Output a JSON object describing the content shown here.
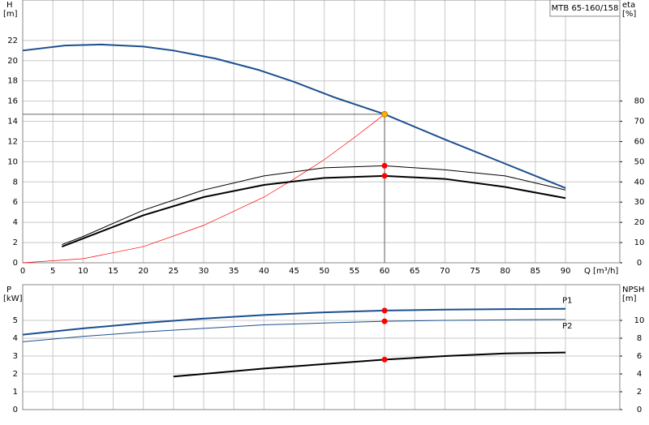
{
  "chart_data": [
    {
      "type": "line",
      "title": "MTB 65-160/158",
      "y_label": "H",
      "y_unit": "[m]",
      "y2_label": "eta",
      "y2_unit": "[%]",
      "x_label": "Q [m³/h]",
      "xlim": [
        0,
        99
      ],
      "xticks": [
        0,
        5,
        10,
        15,
        20,
        25,
        30,
        35,
        40,
        45,
        50,
        55,
        60,
        65,
        70,
        75,
        80,
        85,
        90
      ],
      "ylim": [
        0,
        26
      ],
      "yticks": [
        0,
        2,
        4,
        6,
        8,
        10,
        12,
        14,
        16,
        18,
        20,
        22
      ],
      "y2lim": [
        0,
        130
      ],
      "y2ticks": [
        0,
        10,
        20,
        30,
        40,
        50,
        60,
        70,
        80
      ],
      "grid": true,
      "series": [
        {
          "color": "#1c4f8f",
          "width": 2,
          "x": [
            0,
            7,
            13,
            20,
            25,
            32,
            39,
            45,
            52,
            60,
            70,
            80,
            90
          ],
          "values": [
            21.0,
            21.5,
            21.6,
            21.4,
            21.0,
            20.2,
            19.1,
            17.9,
            16.3,
            14.7,
            12.2,
            9.8,
            7.4
          ]
        },
        {
          "color": "#ff0000",
          "width": 0.7,
          "x": [
            0,
            10,
            20,
            30,
            40,
            45,
            50,
            55,
            60
          ],
          "values": [
            0,
            0.4,
            1.6,
            3.7,
            6.5,
            8.3,
            10.2,
            12.4,
            14.7
          ]
        },
        {
          "color": "#000000",
          "width": 1,
          "axis": "y2",
          "x": [
            6.5,
            10,
            20,
            30,
            40,
            50,
            60,
            70,
            80,
            90
          ],
          "values": [
            9,
            13,
            26,
            36,
            43,
            47,
            48,
            46,
            43,
            36
          ]
        },
        {
          "color": "#000000",
          "width": 2,
          "axis": "y2",
          "x": [
            6.5,
            10,
            20,
            30,
            40,
            50,
            60,
            70,
            80,
            90
          ],
          "values": [
            8,
            12,
            23.5,
            32.5,
            38.5,
            42,
            43,
            41.5,
            37.5,
            32
          ]
        }
      ],
      "points": [
        {
          "x": 60,
          "y": 14.7,
          "color": "#ffb000",
          "crosshair": true
        },
        {
          "x": 60,
          "y": 48,
          "axis": "y2",
          "color": "#ff0000"
        },
        {
          "x": 60,
          "y": 43,
          "axis": "y2",
          "color": "#ff0000"
        }
      ]
    },
    {
      "type": "line",
      "y_label": "P",
      "y_unit": "[kW]",
      "y2_label": "NPSH",
      "y2_unit": "[m]",
      "xlim": [
        0,
        99
      ],
      "xticks": [
        0,
        5,
        10,
        15,
        20,
        25,
        30,
        35,
        40,
        45,
        50,
        55,
        60,
        65,
        70,
        75,
        80,
        85,
        90
      ],
      "ylim": [
        0,
        7
      ],
      "yticks": [
        0,
        1,
        2,
        3,
        4,
        5
      ],
      "y2lim": [
        0,
        14
      ],
      "y2ticks": [
        0,
        2,
        4,
        6,
        8,
        10
      ],
      "grid": true,
      "series": [
        {
          "name": "P1",
          "color": "#1c4f8f",
          "width": 2,
          "x": [
            0,
            10,
            20,
            30,
            40,
            50,
            60,
            70,
            80,
            90
          ],
          "values": [
            4.2,
            4.55,
            4.85,
            5.1,
            5.3,
            5.45,
            5.55,
            5.6,
            5.63,
            5.65
          ]
        },
        {
          "name": "P2",
          "color": "#1c4f8f",
          "width": 1,
          "x": [
            0,
            10,
            20,
            30,
            40,
            50,
            60,
            70,
            80,
            90
          ],
          "values": [
            3.8,
            4.1,
            4.35,
            4.55,
            4.75,
            4.85,
            4.95,
            5.0,
            5.03,
            5.05
          ]
        },
        {
          "color": "#000000",
          "width": 2,
          "axis": "y2",
          "x": [
            25,
            30,
            40,
            50,
            60,
            70,
            80,
            90
          ],
          "values": [
            3.7,
            4.0,
            4.6,
            5.1,
            5.6,
            6.0,
            6.3,
            6.4
          ]
        }
      ],
      "points": [
        {
          "x": 60,
          "y": 5.55,
          "color": "#ff0000"
        },
        {
          "x": 60,
          "y": 4.95,
          "color": "#ff0000"
        },
        {
          "x": 60,
          "y": 5.6,
          "axis": "y2",
          "color": "#ff0000"
        }
      ]
    }
  ]
}
